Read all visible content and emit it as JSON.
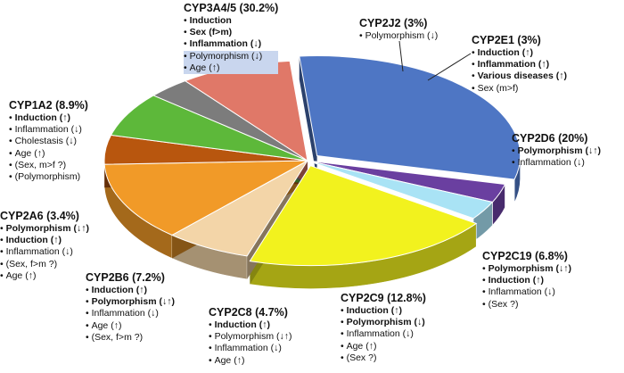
{
  "chart_data": {
    "type": "pie",
    "title": "",
    "slices": [
      {
        "name": "CYP3A4/5",
        "value": 30.2,
        "color": "#4e76c4",
        "label": "CYP3A4/5 (30.2%)",
        "items": [
          {
            "text": "Induction",
            "bold": true
          },
          {
            "text": "Sex (f>m)",
            "bold": true
          },
          {
            "text": "Inflammation (↓)",
            "bold": true
          },
          {
            "text": "Polymorphism (↓)",
            "bold": false
          },
          {
            "text": "Age (↑)",
            "bold": false
          }
        ]
      },
      {
        "name": "CYP2J2",
        "value": 3,
        "color": "#6a3fa0",
        "label": "CYP2J2 (3%)",
        "items": [
          {
            "text": "Polymorphism (↓)",
            "bold": false
          }
        ]
      },
      {
        "name": "CYP2E1",
        "value": 3,
        "color": "#a9e3f5",
        "label": "CYP2E1 (3%)",
        "items": [
          {
            "text": "Induction (↑)",
            "bold": true
          },
          {
            "text": "Inflammation (↑)",
            "bold": true
          },
          {
            "text": "Various diseases (↑)",
            "bold": true
          },
          {
            "text": "Sex (m>f)",
            "bold": false
          }
        ]
      },
      {
        "name": "CYP2D6",
        "value": 20,
        "color": "#f2f21e",
        "label": "CYP2D6 (20%)",
        "items": [
          {
            "text": "Polymorphism (↓↑)",
            "bold": true
          },
          {
            "text": "Inflammation (↓)",
            "bold": false
          }
        ]
      },
      {
        "name": "CYP2C19",
        "value": 6.8,
        "color": "#f3d5a8",
        "label": "CYP2C19 (6.8%)",
        "items": [
          {
            "text": "Polymorphism (↓↑)",
            "bold": true
          },
          {
            "text": "Induction (↑)",
            "bold": true
          },
          {
            "text": "Inflammation (↓)",
            "bold": false
          },
          {
            "text": "(Sex ?)",
            "bold": false
          }
        ]
      },
      {
        "name": "CYP2C9",
        "value": 12.8,
        "color": "#f19a28",
        "label": "CYP2C9 (12.8%)",
        "items": [
          {
            "text": "Induction (↑)",
            "bold": true
          },
          {
            "text": "Polymorphism (↓)",
            "bold": true
          },
          {
            "text": "Inflammation (↓)",
            "bold": false
          },
          {
            "text": "Age (↑)",
            "bold": false
          },
          {
            "text": "(Sex ?)",
            "bold": false
          }
        ]
      },
      {
        "name": "CYP2C8",
        "value": 4.7,
        "color": "#b8560e",
        "label": "CYP2C8 (4.7%)",
        "items": [
          {
            "text": "Induction (↑)",
            "bold": true
          },
          {
            "text": "Polymorphism (↓↑)",
            "bold": false
          },
          {
            "text": "Inflammation (↓)",
            "bold": false
          },
          {
            "text": "Age (↑)",
            "bold": false
          }
        ]
      },
      {
        "name": "CYP2B6",
        "value": 7.2,
        "color": "#5db83a",
        "label": "CYP2B6 (7.2%)",
        "items": [
          {
            "text": "Induction (↑)",
            "bold": true
          },
          {
            "text": "Polymorphism (↓↑)",
            "bold": true
          },
          {
            "text": "Inflammation (↓)",
            "bold": false
          },
          {
            "text": "Age (↑)",
            "bold": false
          },
          {
            "text": "(Sex, f>m ?)",
            "bold": false
          }
        ]
      },
      {
        "name": "CYP2A6",
        "value": 3.4,
        "color": "#7c7c7c",
        "label": "CYP2A6 (3.4%)",
        "items": [
          {
            "text": "Polymorphism (↓↑)",
            "bold": true
          },
          {
            "text": "Induction (↑)",
            "bold": true
          },
          {
            "text": "Inflammation (↓)",
            "bold": false
          },
          {
            "text": "(Sex, f>m ?)",
            "bold": false
          },
          {
            "text": "Age (↑)",
            "bold": false
          }
        ]
      },
      {
        "name": "CYP1A2",
        "value": 8.9,
        "color": "#e07868",
        "label": "CYP1A2 (8.9%)",
        "items": [
          {
            "text": "Induction (↑)",
            "bold": true
          },
          {
            "text": "Inflammation (↓)",
            "bold": false
          },
          {
            "text": "Cholestasis (↓)",
            "bold": false
          },
          {
            "text": "Age (↑)",
            "bold": false
          },
          {
            "text": "(Sex, m>f ?)",
            "bold": false
          },
          {
            "text": "(Polymorphism)",
            "bold": false
          }
        ]
      }
    ]
  }
}
